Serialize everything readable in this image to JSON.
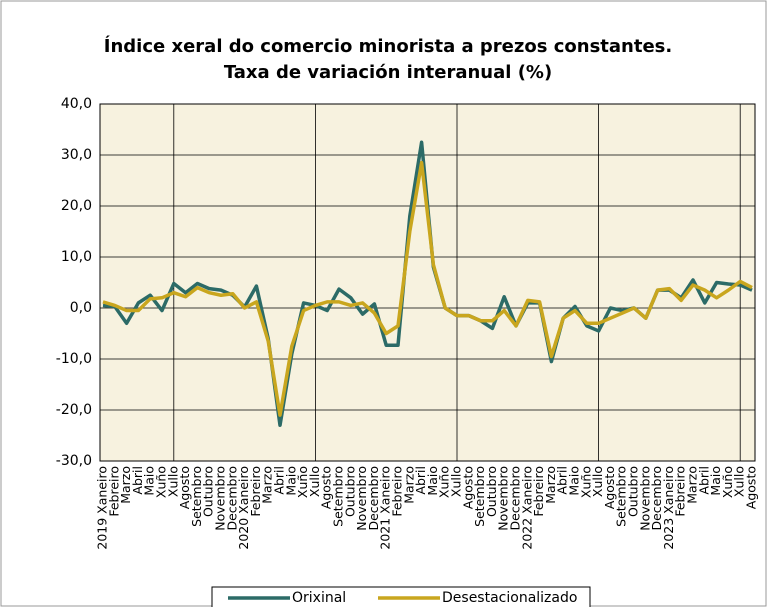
{
  "chart_data": {
    "type": "line",
    "title": "Índice xeral do comercio minorista a prezos constantes.",
    "subtitle": "Taxa de variación interanual (%)",
    "categories": [
      "2019 Xaneiro",
      "Febreiro",
      "Marzo",
      "Abril",
      "Maio",
      "Xuño",
      "Xullo",
      "Agosto",
      "Setembro",
      "Outubro",
      "Novembro",
      "Decembro",
      "2020 Xaneiro",
      "Febreiro",
      "Marzo",
      "Abril",
      "Maio",
      "Xuño",
      "Xullo",
      "Agosto",
      "Setembro",
      "Outubro",
      "Novembro",
      "Decembro",
      "2021 Xaneiro",
      "Febreiro",
      "Marzo",
      "Abril",
      "Maio",
      "Xuño",
      "Xullo",
      "Agosto",
      "Setembro",
      "Outubro",
      "Novembro",
      "Decembro",
      "2022 Xaneiro",
      "Febreiro",
      "Marzo",
      "Abril",
      "Maio",
      "Xuño",
      "Xullo",
      "Agosto",
      "Setembro",
      "Outubro",
      "Novembro",
      "Decembro",
      "2023 Xaneiro",
      "Febreiro",
      "Marzo",
      "Abril",
      "Maio",
      "Xuño",
      "Xullo",
      "Agosto"
    ],
    "series": [
      {
        "name": "Orixinal",
        "color": "#2c6b67",
        "values": [
          0.5,
          0.3,
          -3,
          1,
          2.5,
          -0.5,
          4.8,
          3,
          4.8,
          3.8,
          3.5,
          2.5,
          0.2,
          4.3,
          -6,
          -23,
          -9,
          1,
          0.5,
          -0.5,
          3.7,
          2,
          -1.2,
          0.8,
          -7.3,
          -7.3,
          18,
          32.5,
          8,
          0,
          -1.5,
          -1.5,
          -2.5,
          -4,
          2.2,
          -3.5,
          1,
          1,
          -10.5,
          -2,
          0.3,
          -3.5,
          -4.5,
          0,
          -0.5,
          0,
          -2,
          3.5,
          3.5,
          2,
          5.5,
          1,
          5,
          4.7,
          4.5,
          3.5
        ]
      },
      {
        "name": "Desestacionalizado",
        "color": "#c9a61e",
        "values": [
          1.2,
          0.5,
          -0.5,
          -0.5,
          1.8,
          2,
          3,
          2.2,
          4,
          3,
          2.5,
          2.8,
          0,
          1.2,
          -6.5,
          -21,
          -7.5,
          -0.5,
          0.5,
          1.2,
          1.2,
          0.5,
          1,
          -1,
          -5,
          -3.5,
          15,
          28.5,
          8.5,
          0,
          -1.5,
          -1.5,
          -2.5,
          -2.5,
          -0.5,
          -3.5,
          1.5,
          1.2,
          -9.5,
          -2,
          -0.5,
          -3,
          -3,
          -2,
          -1,
          0,
          -2,
          3.5,
          3.8,
          1.5,
          4.5,
          3.5,
          2,
          3.5,
          5.2,
          4
        ]
      }
    ],
    "ylim": [
      -30,
      40
    ],
    "yticks": [
      {
        "value": -30,
        "label": "-30,0"
      },
      {
        "value": -20,
        "label": "-20,0"
      },
      {
        "value": -10,
        "label": "-10,0"
      },
      {
        "value": 0,
        "label": "0,0"
      },
      {
        "value": 10,
        "label": "10,0"
      },
      {
        "value": 20,
        "label": "20,0"
      },
      {
        "value": 30,
        "label": "30,0"
      },
      {
        "value": 40,
        "label": "40,0"
      }
    ],
    "grid": true
  }
}
